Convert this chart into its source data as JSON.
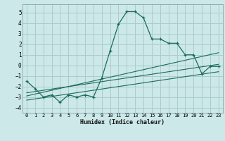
{
  "xlabel": "Humidex (Indice chaleur)",
  "xlim": [
    -0.5,
    23.5
  ],
  "ylim": [
    -4.5,
    5.8
  ],
  "xticks": [
    0,
    1,
    2,
    3,
    4,
    5,
    6,
    7,
    8,
    9,
    10,
    11,
    12,
    13,
    14,
    15,
    16,
    17,
    18,
    19,
    20,
    21,
    22,
    23
  ],
  "yticks": [
    -4,
    -3,
    -2,
    -1,
    0,
    1,
    2,
    3,
    4,
    5
  ],
  "bg_color": "#cce8e8",
  "line_color": "#1a6b5a",
  "grid_color": "#aacccc",
  "main_x": [
    0,
    1,
    2,
    3,
    4,
    5,
    6,
    7,
    8,
    9,
    10,
    11,
    12,
    13,
    14,
    15,
    16,
    17,
    18,
    19,
    20,
    21,
    22,
    23
  ],
  "main_y": [
    -1.5,
    -2.2,
    -3.0,
    -2.8,
    -3.5,
    -2.8,
    -3.0,
    -2.8,
    -3.0,
    -1.2,
    1.4,
    3.9,
    5.1,
    5.1,
    4.5,
    2.5,
    2.5,
    2.1,
    2.1,
    1.0,
    1.0,
    -0.8,
    -0.1,
    -0.1
  ],
  "line2_x": [
    0,
    23
  ],
  "line2_y": [
    -2.6,
    0.1
  ],
  "line3_x": [
    0,
    23
  ],
  "line3_y": [
    -3.3,
    -0.6
  ],
  "line4_x": [
    0,
    23
  ],
  "line4_y": [
    -2.9,
    1.2
  ]
}
